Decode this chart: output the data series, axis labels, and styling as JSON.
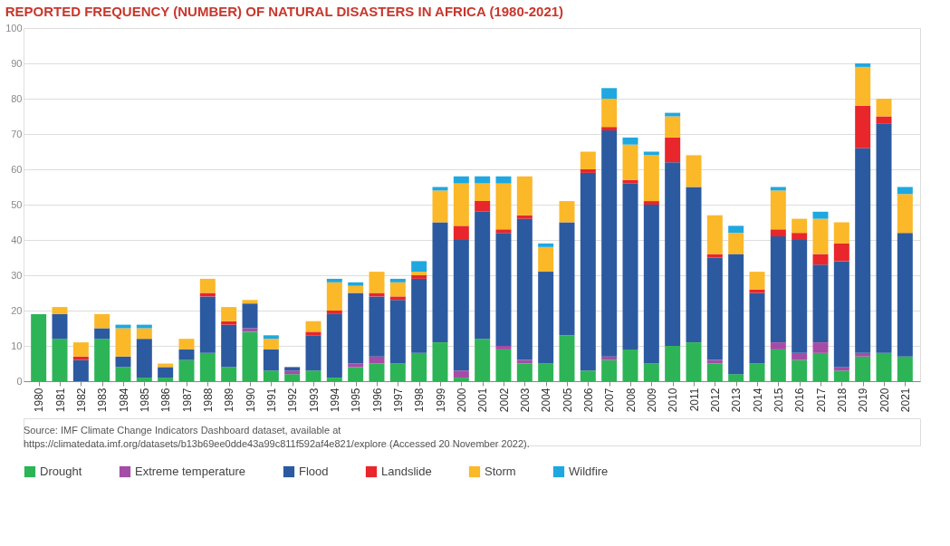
{
  "chart_data": {
    "type": "bar",
    "stacked": true,
    "title": "REPORTED FREQUENCY (NUMBER) OF NATURAL DISASTERS IN AFRICA (1980-2021)",
    "categories": [
      "1980",
      "1981",
      "1982",
      "1983",
      "1984",
      "1985",
      "1986",
      "1987",
      "1988",
      "1989",
      "1990",
      "1991",
      "1992",
      "1993",
      "1994",
      "1995",
      "1996",
      "1997",
      "1998",
      "1999",
      "2000",
      "2001",
      "2002",
      "2003",
      "2004",
      "2005",
      "2006",
      "2007",
      "2008",
      "2009",
      "2010",
      "2011",
      "2012",
      "2013",
      "2014",
      "2015",
      "2016",
      "2017",
      "2018",
      "2019",
      "2020",
      "2021"
    ],
    "series": [
      {
        "name": "Drought",
        "color": "#2db457",
        "values": [
          19,
          12,
          0,
          12,
          4,
          1,
          1,
          6,
          8,
          4,
          14,
          3,
          2,
          3,
          1,
          4,
          5,
          5,
          8,
          11,
          1,
          12,
          9,
          5,
          5,
          13,
          3,
          6,
          9,
          5,
          10,
          11,
          5,
          2,
          5,
          9,
          6,
          8,
          3,
          7,
          8,
          7
        ]
      },
      {
        "name": "Extreme temperature",
        "color": "#a54ca6",
        "values": [
          0,
          0,
          0,
          0,
          0,
          0,
          0,
          0,
          0,
          0,
          1,
          0,
          1,
          0,
          0,
          1,
          2,
          0,
          0,
          0,
          2,
          0,
          1,
          1,
          0,
          0,
          0,
          1,
          0,
          0,
          0,
          0,
          1,
          0,
          0,
          2,
          2,
          3,
          1,
          1,
          0,
          0
        ]
      },
      {
        "name": "Flood",
        "color": "#2c5aa0",
        "values": [
          0,
          7,
          6,
          3,
          3,
          11,
          3,
          3,
          16,
          12,
          7,
          6,
          1,
          10,
          18,
          20,
          17,
          18,
          21,
          34,
          37,
          36,
          32,
          40,
          26,
          32,
          56,
          64,
          47,
          45,
          52,
          44,
          29,
          34,
          20,
          30,
          32,
          22,
          30,
          58,
          65,
          35
        ]
      },
      {
        "name": "Landslide",
        "color": "#e8262c",
        "values": [
          0,
          0,
          1,
          0,
          0,
          0,
          0,
          0,
          1,
          1,
          0,
          0,
          0,
          1,
          1,
          0,
          1,
          1,
          1,
          0,
          4,
          3,
          1,
          1,
          0,
          0,
          1,
          1,
          1,
          1,
          7,
          0,
          1,
          0,
          1,
          2,
          2,
          3,
          5,
          12,
          2,
          0
        ]
      },
      {
        "name": "Storm",
        "color": "#fbb829",
        "values": [
          0,
          2,
          4,
          4,
          8,
          3,
          1,
          3,
          4,
          4,
          1,
          3,
          0,
          3,
          8,
          2,
          6,
          4,
          1,
          9,
          12,
          5,
          13,
          11,
          7,
          6,
          5,
          8,
          10,
          13,
          6,
          9,
          11,
          6,
          5,
          11,
          4,
          10,
          6,
          11,
          5,
          11
        ]
      },
      {
        "name": "Wildfire",
        "color": "#1fa8e0",
        "values": [
          0,
          0,
          0,
          0,
          1,
          1,
          0,
          0,
          0,
          0,
          0,
          1,
          0,
          0,
          1,
          1,
          0,
          1,
          3,
          1,
          2,
          2,
          2,
          0,
          1,
          0,
          0,
          3,
          2,
          1,
          1,
          0,
          0,
          2,
          0,
          1,
          0,
          2,
          0,
          1,
          0,
          2
        ]
      }
    ],
    "ylim": [
      0,
      100
    ],
    "yticks": [
      0,
      10,
      20,
      30,
      40,
      50,
      60,
      70,
      80,
      90,
      100
    ],
    "grid": "y",
    "legend": "bottom",
    "annotations": [
      "Source: IMF Climate Change Indicators Dashboard dataset, available at",
      "https://climatedata.imf.org/datasets/b13b69ee0dde43a99c811f592af4e821/explore (Accessed 20 November 2022)."
    ]
  }
}
